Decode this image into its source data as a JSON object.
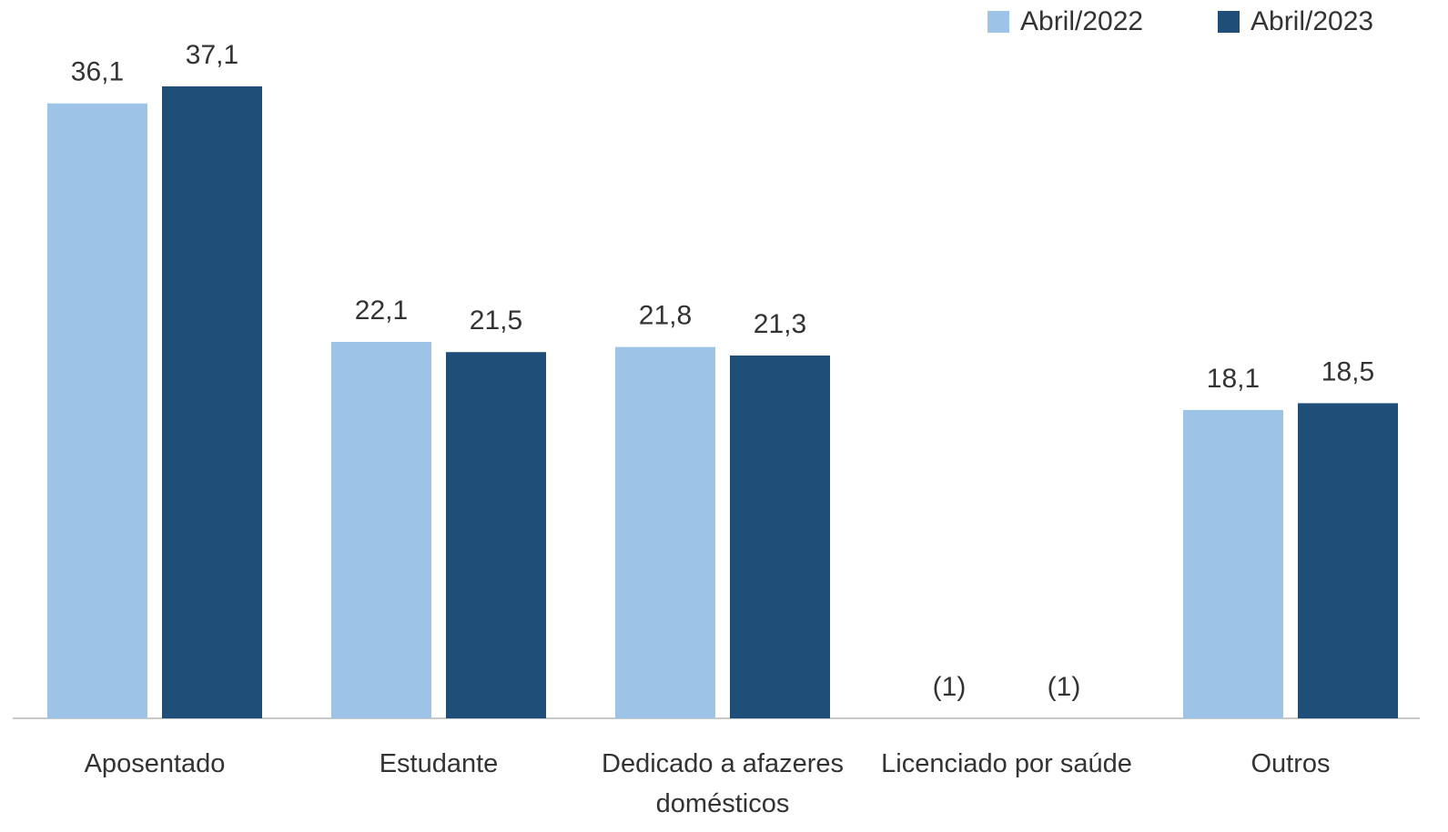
{
  "chart_data": {
    "type": "bar",
    "categories": [
      "Aposentado",
      "Estudante",
      "Dedicado a afazeres domésticos",
      "Licenciado por saúde",
      "Outros"
    ],
    "series": [
      {
        "name": "Abril/2022",
        "color": "#9dc3e6",
        "values": [
          36.1,
          22.1,
          21.8,
          null,
          18.1
        ],
        "value_labels": [
          "36,1",
          "22,1",
          "21,8",
          "(1)",
          "18,1"
        ]
      },
      {
        "name": "Abril/2023",
        "color": "#1f4e79",
        "values": [
          37.1,
          21.5,
          21.3,
          null,
          18.5
        ],
        "value_labels": [
          "37,1",
          "21,5",
          "21,3",
          "(1)",
          "18,5"
        ]
      }
    ],
    "legend": "top-right"
  }
}
